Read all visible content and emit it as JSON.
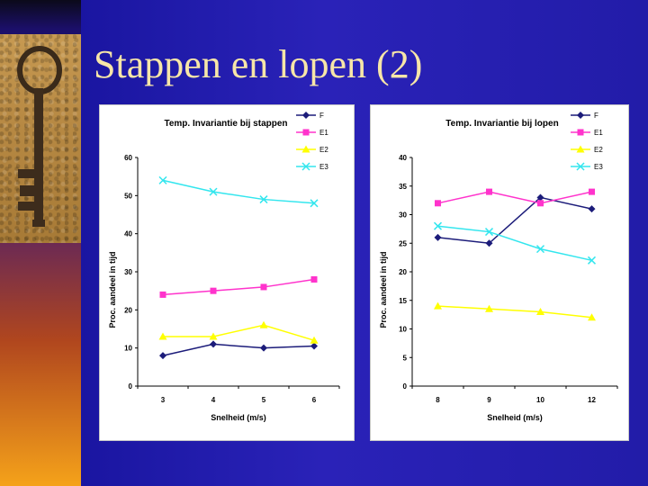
{
  "slide": {
    "title": "Stappen en lopen (2)"
  },
  "colors": {
    "F": "#1c1c7a",
    "E1": "#ff33cc",
    "E2": "#ffff00",
    "E3": "#33e6ee"
  },
  "chart_data": [
    {
      "type": "line",
      "title": "Temp. Invariantie bij stappen",
      "xlabel": "Snelheid (m/s)",
      "ylabel": "Proc. aandeel in tijd",
      "categories": [
        "3",
        "4",
        "5",
        "6"
      ],
      "ylim": [
        0,
        60
      ],
      "yticks": [
        0,
        10,
        20,
        30,
        40,
        50,
        60
      ],
      "legend_position": "top-right",
      "series": [
        {
          "name": "F",
          "values": [
            8,
            11,
            10,
            10.5
          ],
          "marker": "diamond"
        },
        {
          "name": "E1",
          "values": [
            24,
            25,
            26,
            28
          ],
          "marker": "square"
        },
        {
          "name": "E2",
          "values": [
            13,
            13,
            16,
            12
          ],
          "marker": "triangle"
        },
        {
          "name": "E3",
          "values": [
            54,
            51,
            49,
            48
          ],
          "marker": "x"
        }
      ]
    },
    {
      "type": "line",
      "title": "Temp. Invariantie bij lopen",
      "xlabel": "Snelheid (m/s)",
      "ylabel": "Proc. aandeel in tijd",
      "categories": [
        "8",
        "9",
        "10",
        "12"
      ],
      "ylim": [
        0,
        40
      ],
      "yticks": [
        0,
        5,
        10,
        15,
        20,
        25,
        30,
        35,
        40
      ],
      "legend_position": "top-right",
      "series": [
        {
          "name": "F",
          "values": [
            26,
            25,
            33,
            31
          ],
          "marker": "diamond"
        },
        {
          "name": "E1",
          "values": [
            32,
            34,
            32,
            34
          ],
          "marker": "square"
        },
        {
          "name": "E2",
          "values": [
            14,
            13.5,
            13,
            12
          ],
          "marker": "triangle"
        },
        {
          "name": "E3",
          "values": [
            28,
            27,
            24,
            22
          ],
          "marker": "x"
        }
      ]
    }
  ]
}
